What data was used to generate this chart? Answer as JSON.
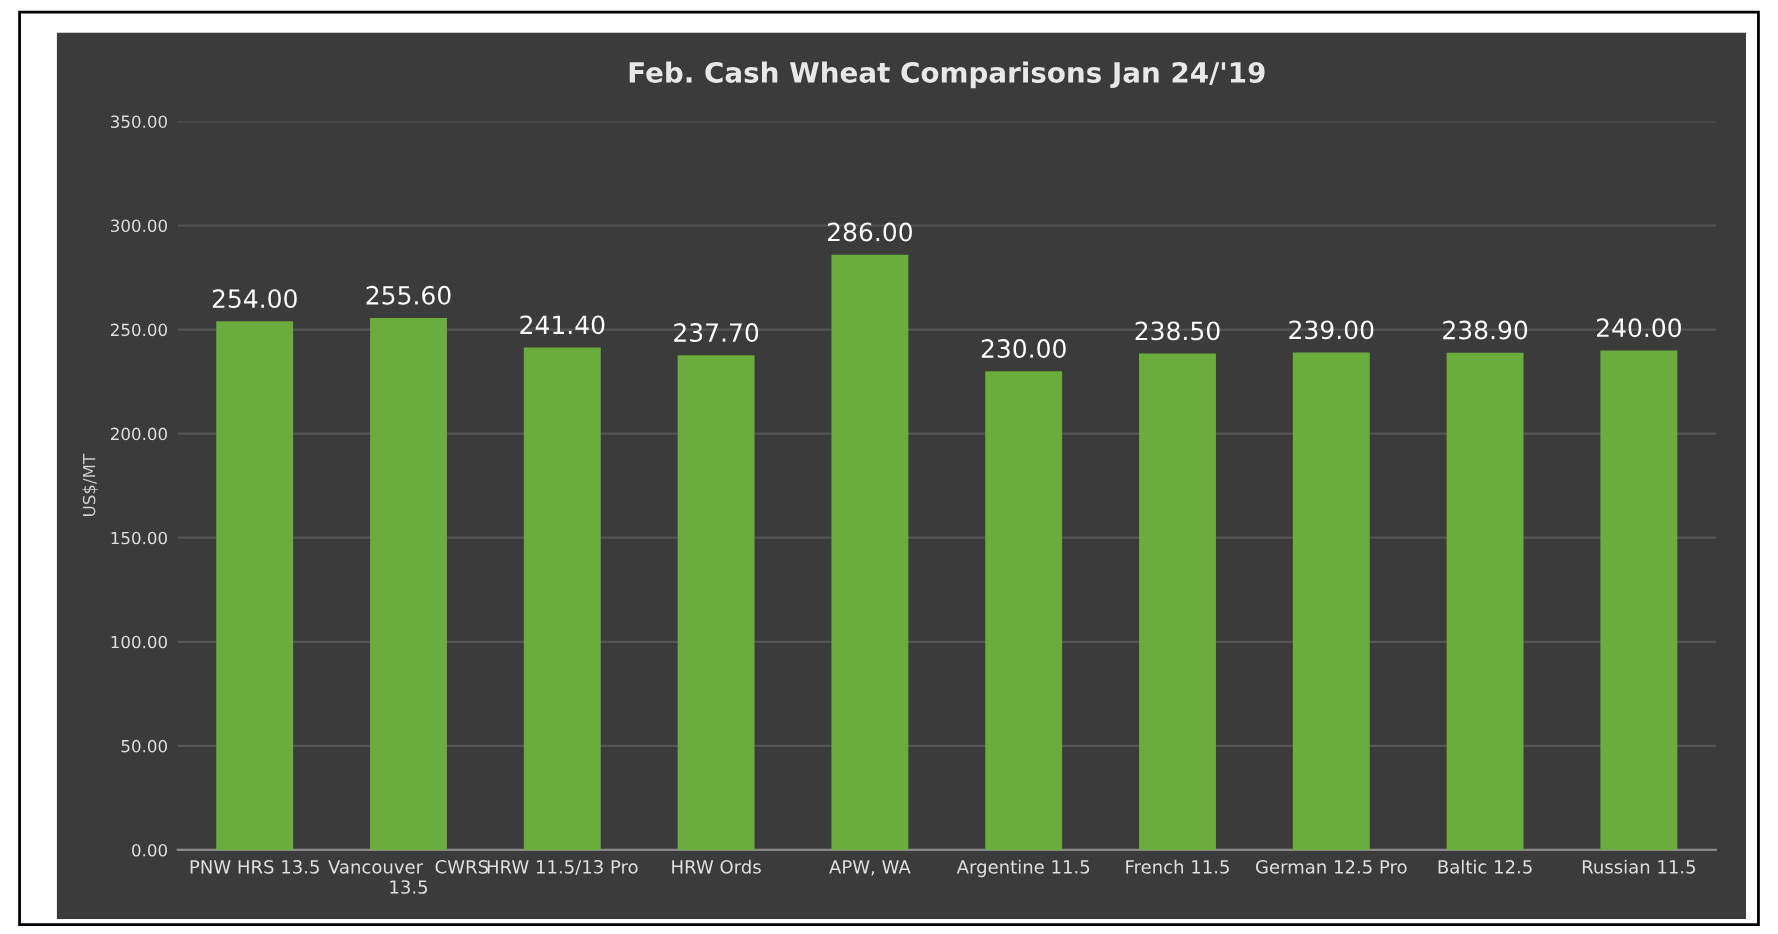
{
  "chart_data": {
    "type": "bar",
    "title": "Feb. Cash Wheat Comparisons Jan 24/'19",
    "ylabel": "US$/MT",
    "categories": [
      "PNW HRS 13.5",
      "Vancouver  CWRS\n13.5",
      "HRW 11.5/13 Pro",
      "HRW Ords",
      "APW, WA",
      "Argentine 11.5",
      "French 11.5",
      "German 12.5 Pro",
      "Baltic 12.5",
      "Russian 11.5"
    ],
    "values": [
      254.0,
      255.6,
      241.4,
      237.7,
      286.0,
      230.0,
      238.5,
      239.0,
      238.9,
      240.0
    ],
    "value_labels": [
      "254.00",
      "255.60",
      "241.40",
      "237.70",
      "286.00",
      "230.00",
      "238.50",
      "239.00",
      "238.90",
      "240.00"
    ],
    "color": "#6aad3d",
    "ylim": [
      0,
      350
    ],
    "yticks": [
      {
        "value": 0,
        "label": "0.00"
      },
      {
        "value": 50,
        "label": "50.00"
      },
      {
        "value": 100,
        "label": "100.00"
      },
      {
        "value": 150,
        "label": "150.00"
      },
      {
        "value": 200,
        "label": "200.00"
      },
      {
        "value": 250,
        "label": "250.00"
      },
      {
        "value": 300,
        "label": "300.00"
      },
      {
        "value": 350,
        "label": "350.00"
      }
    ],
    "grid": "y",
    "legend": false
  }
}
